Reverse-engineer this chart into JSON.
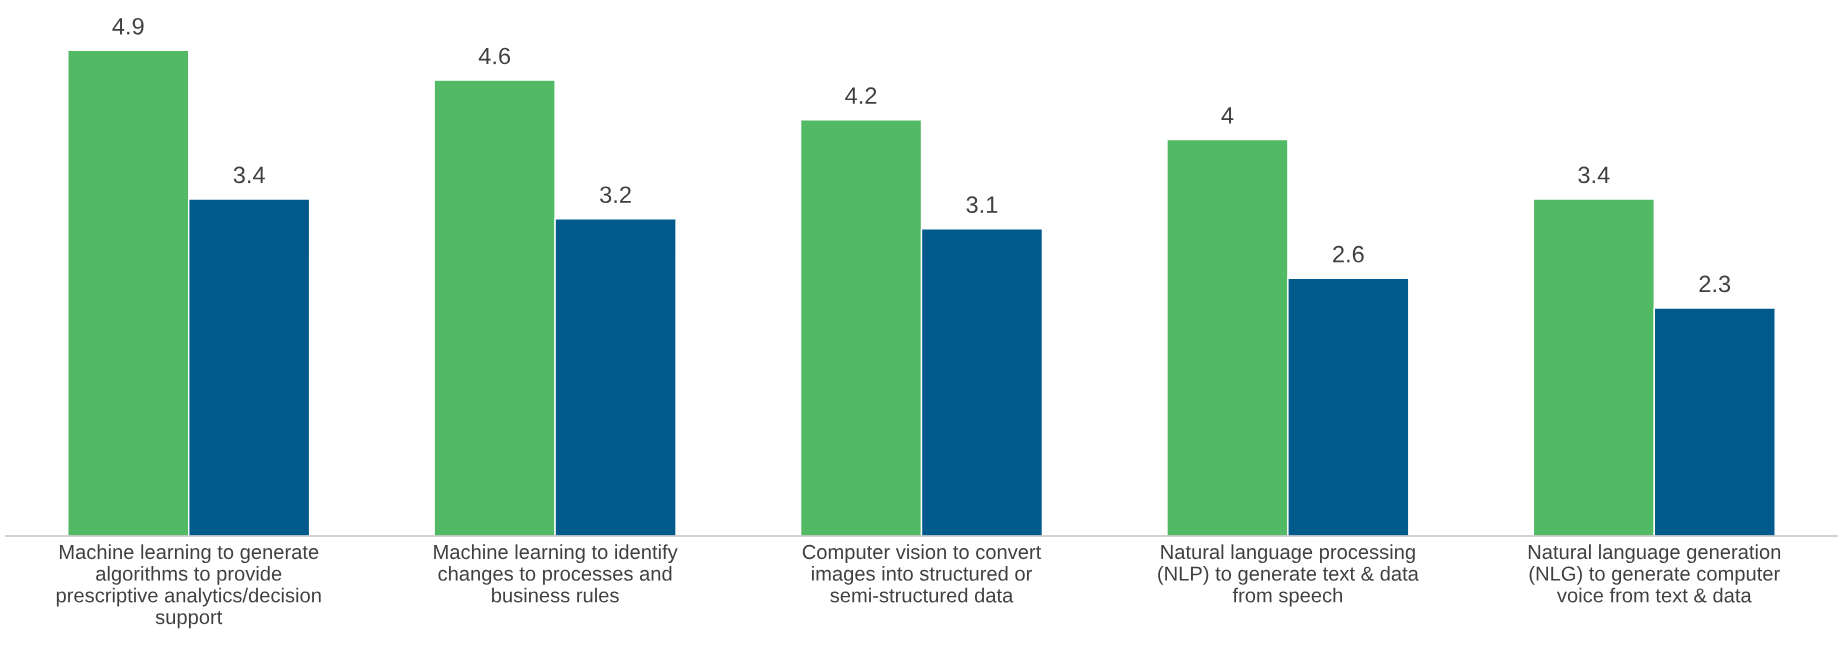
{
  "chart_data": {
    "type": "bar",
    "categories": [
      "Machine learning to generate algorithms to provide prescriptive analytics/decision support",
      "Machine learning to identify changes to processes and business rules",
      "Computer vision to convert images into structured or semi-structured data",
      "Natural language processing (NLP) to generate text & data from speech",
      "Natural language generation (NLG) to generate computer voice from text & data"
    ],
    "series": [
      {
        "color": "#52b964",
        "values": [
          4.9,
          4.6,
          4.2,
          4,
          3.4
        ]
      },
      {
        "color": "#005a8c",
        "values": [
          3.4,
          3.2,
          3.1,
          2.6,
          2.3
        ]
      }
    ],
    "data_labels": true,
    "grid": false
  }
}
